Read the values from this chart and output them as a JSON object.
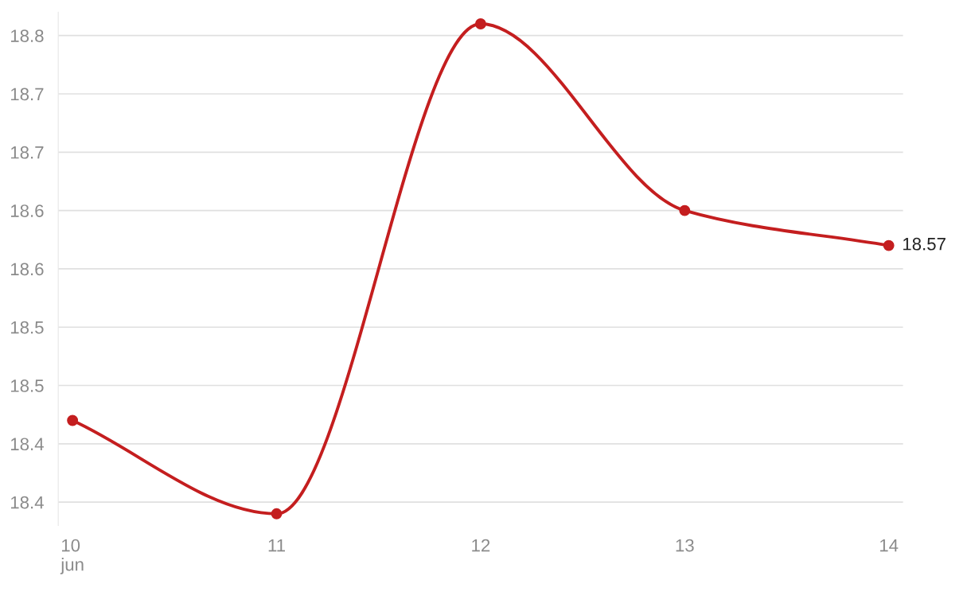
{
  "chart_data": {
    "type": "line",
    "categories": [
      "10\njun",
      "11",
      "12",
      "13",
      "14"
    ],
    "series": [
      {
        "color": "#c41e1f",
        "values": [
          18.42,
          18.34,
          18.76,
          18.6,
          18.57
        ],
        "value_labels": [
          null,
          null,
          null,
          null,
          "18.57"
        ]
      }
    ],
    "ylim": [
      18.33,
      18.77
    ],
    "yticks": [
      {
        "value": 18.35,
        "label": "18.4"
      },
      {
        "value": 18.4,
        "label": "18.4"
      },
      {
        "value": 18.45,
        "label": "18.5"
      },
      {
        "value": 18.5,
        "label": "18.5"
      },
      {
        "value": 18.55,
        "label": "18.6"
      },
      {
        "value": 18.6,
        "label": "18.6"
      },
      {
        "value": 18.65,
        "label": "18.7"
      },
      {
        "value": 18.7,
        "label": "18.7"
      },
      {
        "value": 18.75,
        "label": "18.8"
      }
    ],
    "grid": "y",
    "marker": "circle",
    "line_style": "solid",
    "legend": false
  }
}
